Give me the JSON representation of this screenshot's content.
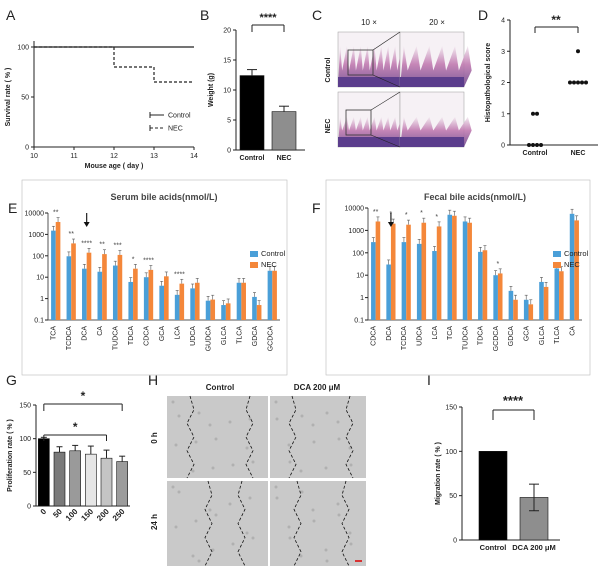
{
  "chart_data": [
    {
      "panel": "A",
      "type": "line",
      "title": "",
      "xlabel": "Mouse age ( day )",
      "ylabel": "Survival rate ( % )",
      "xlim": [
        10,
        14
      ],
      "ylim": [
        0,
        100
      ],
      "xticks": [
        "10",
        "11",
        "12",
        "13",
        "14"
      ],
      "yticks": [
        "0",
        "50",
        "100"
      ],
      "series": [
        {
          "name": "Control",
          "x": [
            10,
            14
          ],
          "y": [
            100,
            100
          ]
        },
        {
          "name": "NEC",
          "x": [
            10,
            12,
            12,
            13,
            13,
            14
          ],
          "y": [
            100,
            100,
            80,
            80,
            65,
            65
          ]
        }
      ]
    },
    {
      "panel": "B",
      "type": "bar",
      "ylabel": "Weight (g)",
      "categories": [
        "Control",
        "NEC"
      ],
      "values": [
        12.4,
        6.4
      ],
      "errors": [
        1.0,
        0.9
      ],
      "ylim": [
        0,
        20
      ],
      "yticks": [
        "0",
        "5",
        "10",
        "15",
        "20"
      ],
      "significance": "****"
    },
    {
      "panel": "C",
      "type": "image",
      "col_labels": [
        "10 ×",
        "20 ×"
      ],
      "row_labels": [
        "Control",
        "NEC"
      ]
    },
    {
      "panel": "D",
      "type": "scatter",
      "ylabel": "Histopathological score",
      "categories": [
        "Control",
        "NEC"
      ],
      "points": [
        [
          0,
          0,
          0,
          0,
          1,
          1
        ],
        [
          2,
          2,
          2,
          2,
          2,
          3
        ]
      ],
      "ylim": [
        0,
        4
      ],
      "yticks": [
        "0",
        "1",
        "2",
        "3",
        "4"
      ],
      "significance": "**"
    },
    {
      "panel": "E",
      "type": "bar",
      "title": "Serum bile acids(nmol/L)",
      "scale": "log",
      "yticks": [
        "0.1",
        "1",
        "10",
        "100",
        "1000",
        "10000"
      ],
      "categories": [
        "TCA",
        "TCDCA",
        "DCA",
        "CA",
        "TUDCA",
        "TDCA",
        "CDCA",
        "GCA",
        "LCA",
        "UDCA",
        "GUDCA",
        "GLCA",
        "TLCA",
        "GDCA",
        "GCDCA"
      ],
      "series": [
        {
          "name": "Control",
          "values": [
            1500,
            95,
            25,
            18,
            35,
            6,
            10,
            4,
            1.5,
            3,
            0.8,
            0.5,
            5.5,
            1.2,
            20
          ]
        },
        {
          "name": "NEC",
          "values": [
            3800,
            380,
            140,
            120,
            110,
            25,
            22,
            11,
            5,
            5.5,
            0.9,
            0.6,
            5.5,
            0.5,
            20
          ]
        }
      ],
      "stars": [
        "**",
        "**",
        "****",
        "**",
        "***",
        "*",
        "****",
        "",
        "****",
        "",
        "",
        "",
        "",
        "",
        ""
      ],
      "arrow_at": "DCA"
    },
    {
      "panel": "F",
      "type": "bar",
      "title": "Fecal bile acids(nmol/L)",
      "scale": "log",
      "yticks": [
        "0.1",
        "1",
        "10",
        "100",
        "1000",
        "10000"
      ],
      "categories": [
        "CDCA",
        "DCA",
        "TCDCA",
        "UDCA",
        "LCA",
        "TCA",
        "TUDCA",
        "TDCA",
        "GCDCA",
        "GDCA",
        "GCA",
        "GLCA",
        "TLCA",
        "CA"
      ],
      "series": [
        {
          "name": "Control",
          "values": [
            300,
            30,
            300,
            250,
            120,
            5000,
            2500,
            110,
            10,
            2,
            0.8,
            5,
            20,
            5500
          ]
        },
        {
          "name": "NEC",
          "values": [
            2500,
            2000,
            1800,
            2200,
            1500,
            4500,
            2200,
            130,
            12,
            0.8,
            0.5,
            3,
            15,
            2800
          ]
        }
      ],
      "stars": [
        "**",
        "*",
        "*",
        "*",
        "*",
        "",
        "",
        "",
        "*",
        "",
        "",
        "",
        "",
        ""
      ],
      "arrow_at": "DCA"
    },
    {
      "panel": "G",
      "type": "bar",
      "ylabel": "Proliferation rate ( % )",
      "categories": [
        "0",
        "50",
        "100",
        "150",
        "200",
        "250"
      ],
      "values": [
        100,
        80,
        82,
        77,
        71,
        66
      ],
      "errors": [
        2,
        8,
        8,
        12,
        12,
        8
      ],
      "ylim": [
        0,
        150
      ],
      "yticks": [
        "0",
        "50",
        "100",
        "150"
      ],
      "significance": [
        "*",
        "*"
      ]
    },
    {
      "panel": "H",
      "type": "image",
      "col_labels": [
        "Control",
        "DCA 200 μM"
      ],
      "row_labels": [
        "0 h",
        "24 h"
      ]
    },
    {
      "panel": "I",
      "type": "bar",
      "ylabel": "Migration rate ( % )",
      "categories": [
        "Control",
        "DCA 200 μM"
      ],
      "values": [
        100,
        48
      ],
      "errors": [
        0,
        15
      ],
      "ylim": [
        0,
        150
      ],
      "yticks": [
        "0",
        "50",
        "100",
        "150"
      ],
      "significance": "****"
    }
  ],
  "colors": {
    "control": "#4a9fd8",
    "nec": "#f4873a",
    "black": "#000000",
    "grey": "#8e8e8e",
    "pink": "#c07ab0",
    "purple": "#5b3d8c"
  }
}
